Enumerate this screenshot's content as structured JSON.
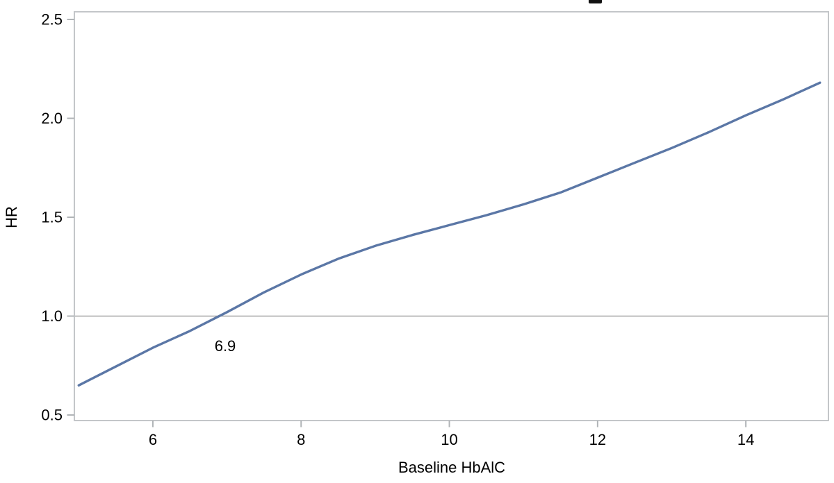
{
  "chart_data": {
    "type": "line",
    "title": "",
    "title_clipped_fragment_visible": true,
    "xlabel": "Baseline HbAlC",
    "ylabel": "HR",
    "xlim": [
      5,
      15
    ],
    "ylim": [
      0.5,
      2.5
    ],
    "grid": false,
    "legend": false,
    "x_tick_values": [
      6,
      8,
      10,
      12,
      14
    ],
    "x_tick_labels": [
      "6",
      "8",
      "10",
      "12",
      "14"
    ],
    "y_tick_values": [
      0.5,
      1.0,
      1.5,
      2.0,
      2.5
    ],
    "y_tick_labels": [
      "0.5",
      "1.0",
      "1.5",
      "2.0",
      "2.5"
    ],
    "reference_line_hr": 1.0,
    "annotation": {
      "text": "6.9",
      "x": 6.9,
      "meaning": "Baseline HbA1C where HR = 1.0"
    },
    "colors": {
      "curve": "#5b77a6",
      "axis_box": "#c3c6c9",
      "tick_mark": "#b0b4b7",
      "reference_line": "#a6a6a6",
      "text": "#000000"
    },
    "points": [
      [
        5.0,
        0.65
      ],
      [
        5.5,
        0.745
      ],
      [
        6.0,
        0.84
      ],
      [
        6.5,
        0.925
      ],
      [
        7.0,
        1.02
      ],
      [
        7.5,
        1.12
      ],
      [
        8.0,
        1.21
      ],
      [
        8.5,
        1.29
      ],
      [
        9.0,
        1.355
      ],
      [
        9.5,
        1.41
      ],
      [
        10.0,
        1.46
      ],
      [
        10.5,
        1.51
      ],
      [
        11.0,
        1.565
      ],
      [
        11.5,
        1.625
      ],
      [
        12.0,
        1.7
      ],
      [
        12.5,
        1.775
      ],
      [
        13.0,
        1.85
      ],
      [
        13.5,
        1.93
      ],
      [
        14.0,
        2.015
      ],
      [
        14.5,
        2.095
      ],
      [
        15.0,
        2.18
      ]
    ]
  }
}
